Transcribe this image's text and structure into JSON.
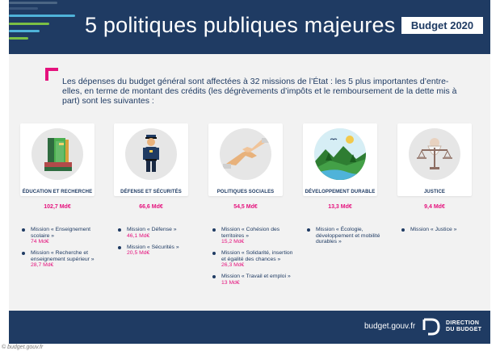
{
  "header": {
    "title": "5 politiques publiques majeures",
    "badge": "Budget 2020"
  },
  "intro": "Les dépenses du budget général sont affectées à 32 missions de l’État : les 5 plus importantes d’entre-elles, en terme de montant des crédits (les dégrèvements d’impôts et le remboursement de la dette mis à part) sont les suivantes :",
  "categories": [
    {
      "title": "ÉDUCATION ET RECHERCHE",
      "amount": "102,7 Md€",
      "icon": "books-icon",
      "missions": [
        {
          "label": "Mission « Enseignement scolaire »",
          "amount": "74 Md€"
        },
        {
          "label": "Mission « Recherche et enseignement supérieur »",
          "amount": "28,7 Md€"
        }
      ]
    },
    {
      "title": "DÉFENSE ET SÉCURITÉS",
      "amount": "66,6 Md€",
      "icon": "police-officer-icon",
      "missions": [
        {
          "label": "Mission « Défense »",
          "amount": "46,1 Md€"
        },
        {
          "label": "Mission « Sécurités »",
          "amount": "20,5 Md€"
        }
      ]
    },
    {
      "title": "POLITIQUES SOCIALES",
      "amount": "54,5 Md€",
      "icon": "helping-hands-icon",
      "missions": [
        {
          "label": "Mission « Cohésion des territoires »",
          "amount": "15,2 Md€"
        },
        {
          "label": "Mission « Solidarité, insertion et égalité des chances »",
          "amount": "26,3 Md€"
        },
        {
          "label": "Mission « Travail et emploi »",
          "amount": "13 Md€"
        }
      ]
    },
    {
      "title": "DÉVELOPPEMENT DURABLE",
      "amount": "13,3 Md€",
      "icon": "nature-landscape-icon",
      "missions": [
        {
          "label": "Mission « Écologie, développement et mobilité durables »",
          "amount": ""
        }
      ]
    },
    {
      "title": "JUSTICE",
      "amount": "9,4 Md€",
      "icon": "scales-of-justice-icon",
      "missions": [
        {
          "label": "Mission « Justice »",
          "amount": ""
        }
      ]
    }
  ],
  "footer": {
    "site": "budget.gouv.fr",
    "logo_line1": "DIRECTION",
    "logo_line2": "DU BUDGET"
  },
  "credit": "© budget.gouv.fr",
  "colors": {
    "navy": "#1f3b63",
    "accent_pink": "#e5127d",
    "background": "#f2f2f2"
  }
}
